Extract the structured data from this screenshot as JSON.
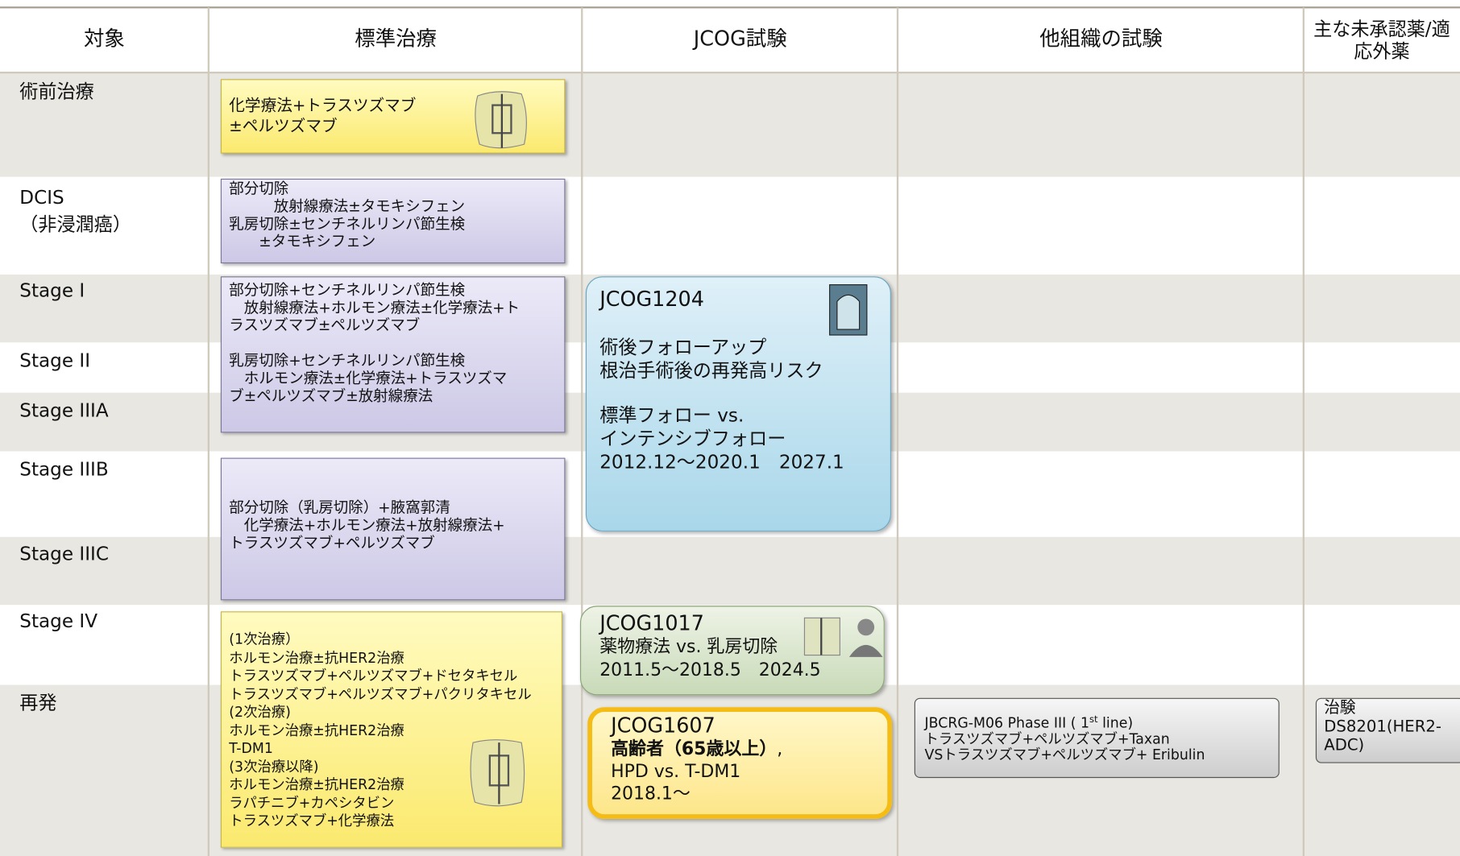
{
  "header": {
    "columns": [
      "対象",
      "標準治療",
      "JCOG試験",
      "他組織の試験",
      "主な未承認薬/適応外薬"
    ]
  },
  "rows": [
    [
      "術前治療"
    ],
    [
      "DCIS",
      "（非浸潤癌）"
    ],
    [
      "Stage I"
    ],
    [
      "Stage II"
    ],
    [
      "Stage IIIA"
    ],
    [
      "Stage IIIB"
    ],
    [
      "Stage IIIC"
    ],
    [
      "Stage IV"
    ],
    [
      "再発"
    ]
  ],
  "standard_boxes": [
    {
      "paragraphs": [
        [
          "化学療法+トラスツズマブ",
          "±ペルツズマブ"
        ]
      ]
    },
    {
      "paragraphs": [
        [
          "部分切除",
          "　　　放射線療法±タモキシフェン",
          "乳房切除±センチネルリンパ節生検",
          "　　±タモキシフェン"
        ]
      ]
    },
    {
      "paragraphs": [
        [
          "部分切除+センチネルリンパ節生検",
          "　放射線療法+ホルモン療法±化学療法+ト",
          "ラスツズマブ±ペルツズマブ"
        ],
        [
          "乳房切除+センチネルリンパ節生検",
          "　ホルモン療法±化学療法+トラスツズマ",
          "ブ±ペルツズマブ±放射線療法"
        ]
      ]
    },
    {
      "paragraphs": [
        [
          "部分切除（乳房切除）+腋窩郭清",
          "　化学療法+ホルモン療法+放射線療法+",
          "トラスツズマブ+ペルツズマブ"
        ]
      ]
    },
    {
      "paragraphs": [
        [
          "(1次治療）",
          "ホルモン治療±抗HER2治療",
          "トラスツズマブ+ペルツズマブ+ドセタキセル",
          "トラスツズマブ+ペルツズマブ+パクリタキセル",
          "(2次治療)",
          "ホルモン治療±抗HER2治療",
          "T-DM1",
          "(3次治療以降)",
          "ホルモン治療±抗HER2治療",
          "ラパチニブ+カペシタビン",
          "トラスツズマブ+化学療法"
        ]
      ]
    }
  ],
  "jcog_trials": [
    {
      "id": "JCOG1204",
      "paragraphs": [
        [
          "術後フォローアップ",
          "根治手術後の再発高リスク"
        ],
        [
          "標準フォロー vs.",
          "インテンシブフォロー",
          "2012.12～2020.1　2027.1"
        ]
      ]
    },
    {
      "id": "JCOG1017",
      "paragraphs": [
        [
          "薬物療法 vs. 乳房切除",
          "2011.5～2018.5　2024.5"
        ]
      ]
    },
    {
      "id": "JCOG1607",
      "highlight": "高齢者（65歳以上）",
      "highlight_suffix": ",",
      "paragraphs": [
        [
          "HPD vs. T-DM1",
          "2018.1～"
        ]
      ]
    }
  ],
  "other_trials": [
    {
      "parts": [
        "JBCRG-M06  Phase III ( 1",
        "st",
        " line)"
      ],
      "lines": [
        "トラスツズマブ+ペルツズマブ+Taxan",
        "VSトラスツズマブ+ペルツズマブ+  Eribulin"
      ]
    }
  ],
  "unapproved": [
    {
      "lines": [
        "治験",
        "DS8201(HER2-",
        "ADC)"
      ]
    }
  ]
}
